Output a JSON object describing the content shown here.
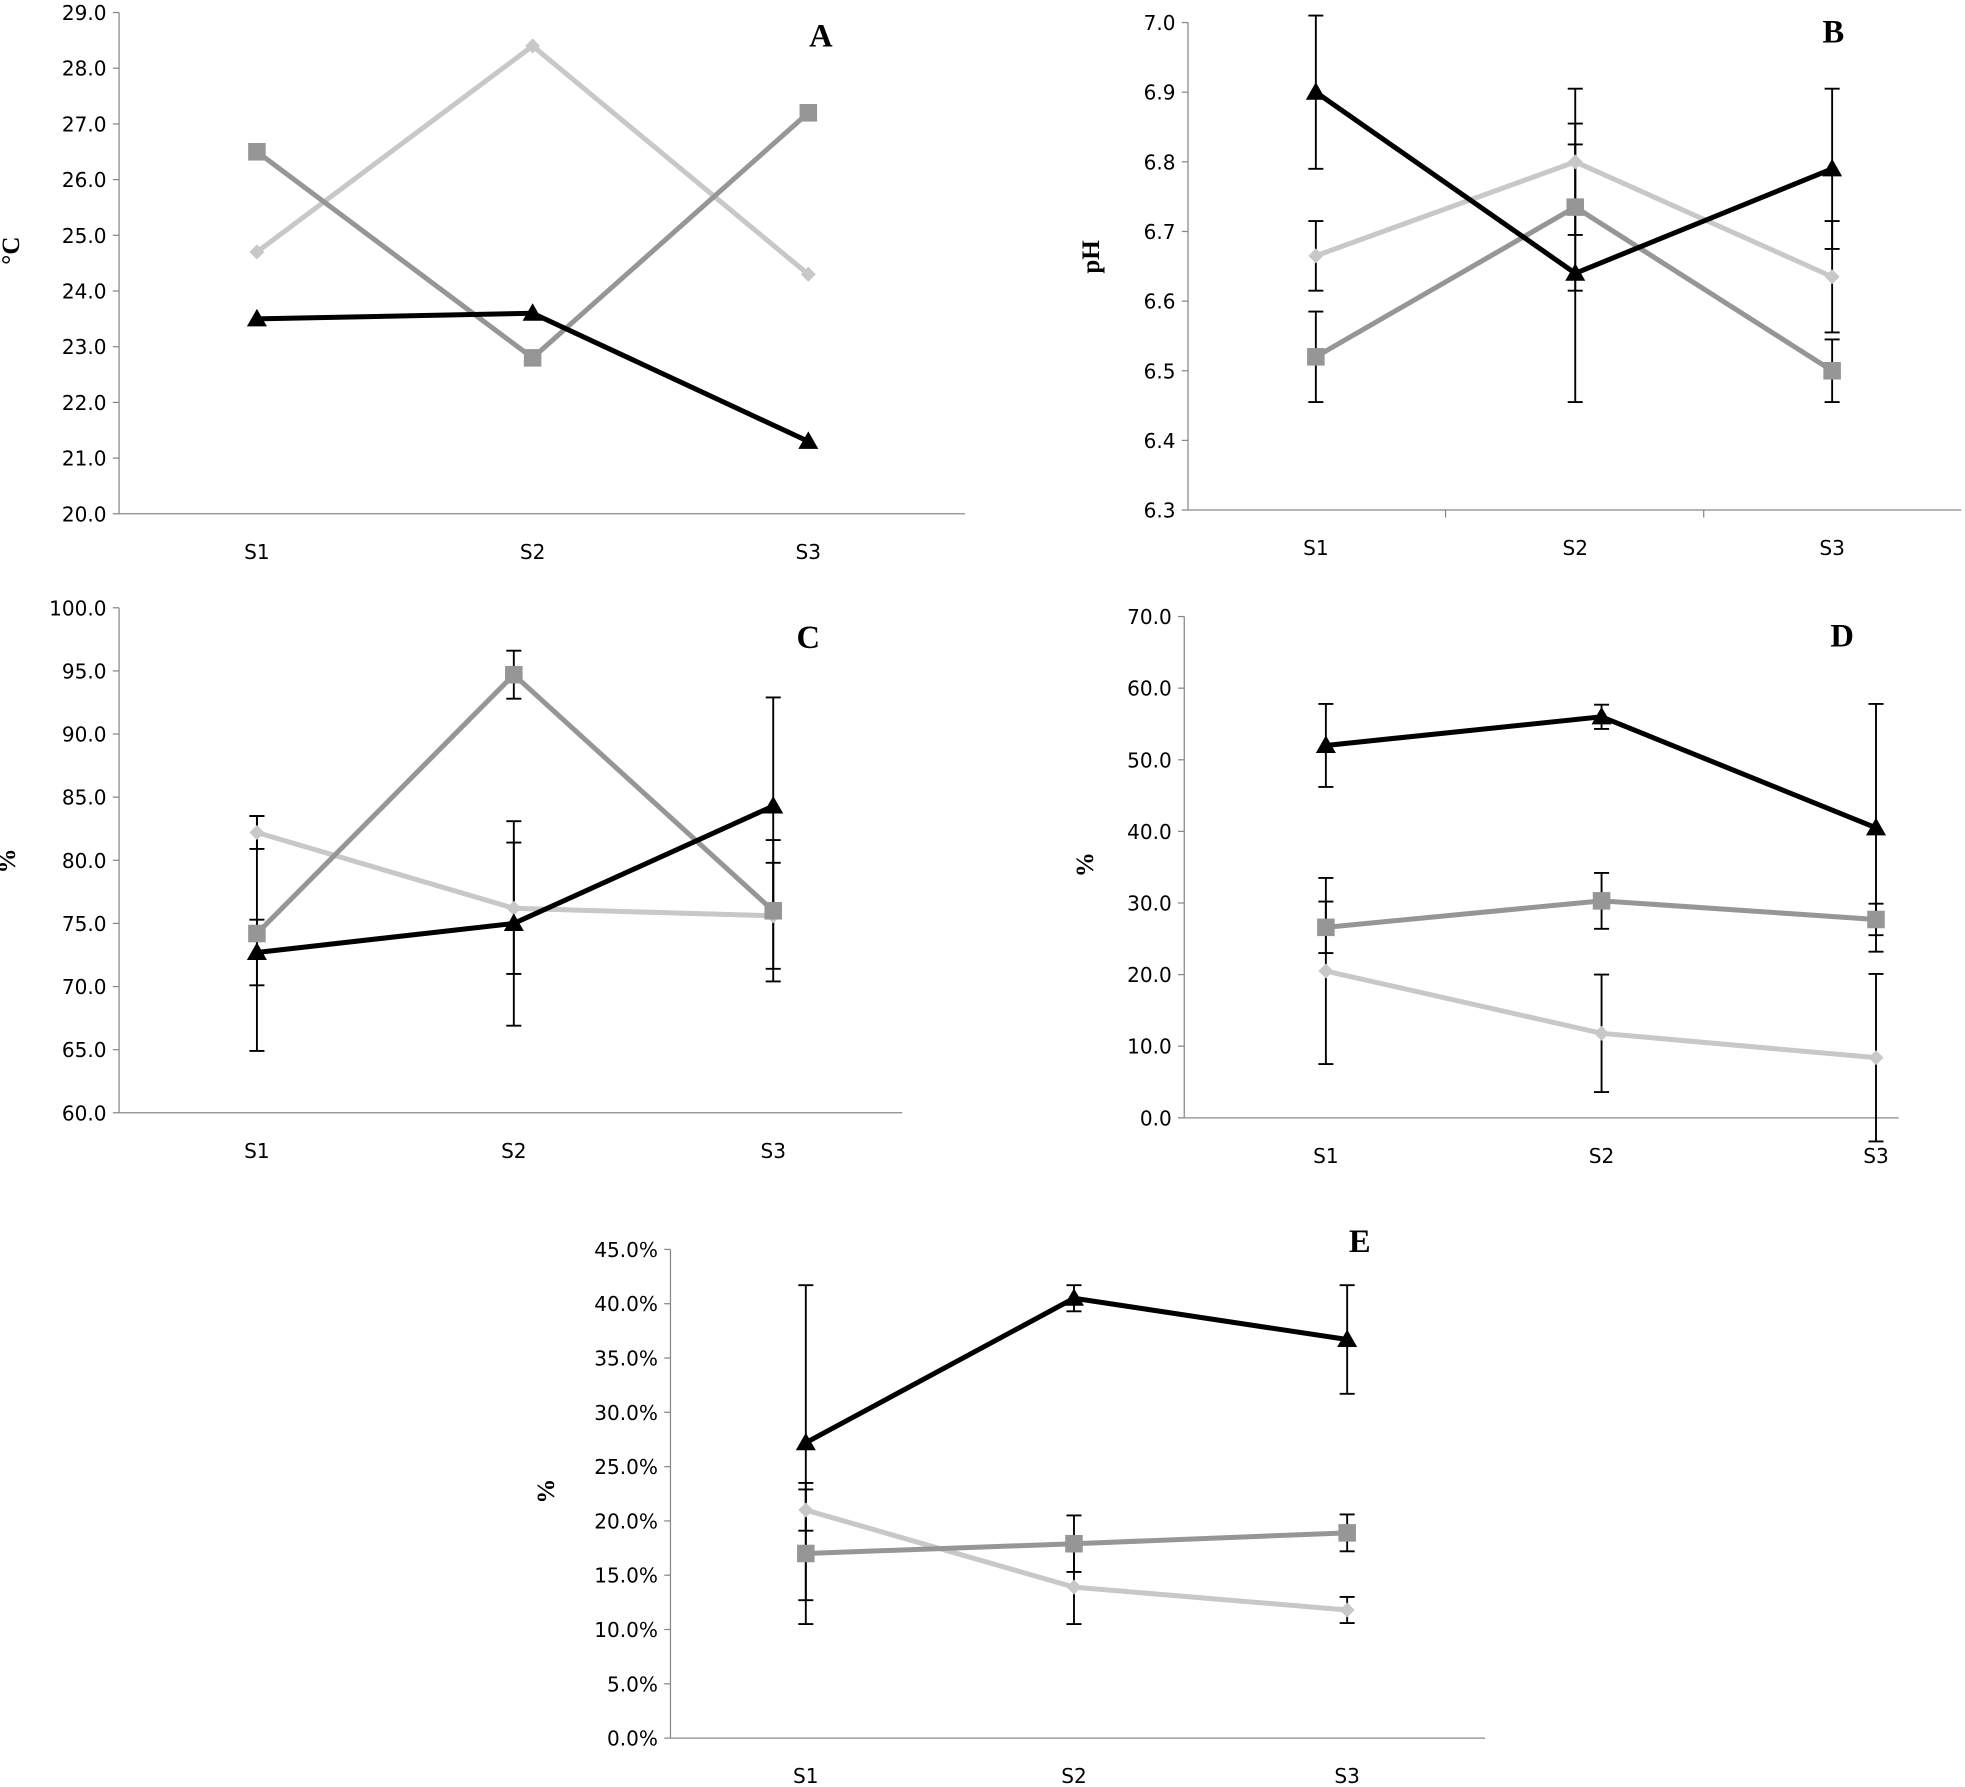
{
  "chart_data": [
    {
      "type": "line",
      "title": "A",
      "y_label": "°C",
      "categories": [
        "S1",
        "S2",
        "S3"
      ],
      "ylim": [
        20,
        29
      ],
      "yticks": [
        {
          "value": 20,
          "label": "20.0"
        },
        {
          "value": 21,
          "label": "21.0"
        },
        {
          "value": 22,
          "label": "22.0"
        },
        {
          "value": 23,
          "label": "23.0"
        },
        {
          "value": 24,
          "label": "24.0"
        },
        {
          "value": 25,
          "label": "25.0"
        },
        {
          "value": 26,
          "label": "26.0"
        },
        {
          "value": 27,
          "label": "27.0"
        },
        {
          "value": 28,
          "label": "28.0"
        },
        {
          "value": 29,
          "label": "29.0"
        }
      ],
      "series": [
        {
          "color": "#c8c8c8",
          "marker": "diamond",
          "values": [
            24.7,
            28.4,
            24.3
          ]
        },
        {
          "color": "#969696",
          "marker": "square",
          "values": [
            26.5,
            22.8,
            27.2
          ]
        },
        {
          "color": "#000000",
          "marker": "triangle",
          "values": [
            23.5,
            23.6,
            21.3
          ]
        }
      ]
    },
    {
      "type": "line",
      "title": "B",
      "y_label": "pH",
      "categories": [
        "S1",
        "S2",
        "S3"
      ],
      "ylim": [
        6.3,
        7.0
      ],
      "yticks": [
        6.3,
        6.4,
        6.5,
        6.6,
        6.7,
        6.8,
        6.9,
        {
          "value": 7.0,
          "label": "7.0"
        }
      ],
      "series": [
        {
          "color": "#c8c8c8",
          "marker": "diamond",
          "values": [
            6.665,
            6.8,
            6.635
          ],
          "errors": [
            0.05,
            0.105,
            0.08
          ]
        },
        {
          "color": "#969696",
          "marker": "square",
          "values": [
            6.52,
            6.735,
            6.5
          ],
          "errors": [
            0.065,
            0.12,
            0.045
          ]
        },
        {
          "color": "#000000",
          "marker": "triangle",
          "values": [
            6.9,
            6.64,
            6.79
          ],
          "errors": [
            0.11,
            0.185,
            0.115
          ]
        }
      ]
    },
    {
      "type": "line",
      "title": "C",
      "y_label": "%",
      "categories": [
        "S1",
        "S2",
        "S3"
      ],
      "ylim": [
        60,
        100
      ],
      "yticks": [
        {
          "value": 60,
          "label": "60.0"
        },
        {
          "value": 65,
          "label": "65.0"
        },
        {
          "value": 70,
          "label": "70.0"
        },
        {
          "value": 75,
          "label": "75.0"
        },
        {
          "value": 80,
          "label": "80.0"
        },
        {
          "value": 85,
          "label": "85.0"
        },
        {
          "value": 90,
          "label": "90.0"
        },
        {
          "value": 95,
          "label": "95.0"
        },
        {
          "value": 100,
          "label": "100.0"
        }
      ],
      "series": [
        {
          "color": "#c8c8c8",
          "marker": "diamond",
          "values": [
            82.2,
            76.2,
            75.6
          ],
          "errors": [
            1.3,
            5.2,
            4.2
          ]
        },
        {
          "color": "#969696",
          "marker": "square",
          "values": [
            74.2,
            94.7,
            76.0
          ],
          "errors": [
            9.3,
            1.9,
            5.6
          ]
        },
        {
          "color": "#000000",
          "marker": "triangle",
          "values": [
            72.7,
            75.0,
            84.3
          ],
          "errors": [
            2.6,
            8.1,
            8.6
          ]
        }
      ]
    },
    {
      "type": "line",
      "title": "D",
      "y_label": "%",
      "categories": [
        "S1",
        "S2",
        "S3"
      ],
      "ylim": [
        0,
        70
      ],
      "yticks": [
        {
          "value": 0,
          "label": "0.0"
        },
        {
          "value": 10,
          "label": "10.0"
        },
        {
          "value": 20,
          "label": "20.0"
        },
        {
          "value": 30,
          "label": "30.0"
        },
        {
          "value": 40,
          "label": "40.0"
        },
        {
          "value": 50,
          "label": "50.0"
        },
        {
          "value": 60,
          "label": "60.0"
        },
        {
          "value": 70,
          "label": "70.0"
        }
      ],
      "series": [
        {
          "color": "#c8c8c8",
          "marker": "diamond",
          "values": [
            20.5,
            11.8,
            8.4
          ],
          "errors": [
            13.0,
            8.2,
            11.7
          ]
        },
        {
          "color": "#969696",
          "marker": "square",
          "values": [
            26.6,
            30.3,
            27.7
          ],
          "errors": [
            3.6,
            3.9,
            2.2
          ]
        },
        {
          "color": "#000000",
          "marker": "triangle",
          "values": [
            52.0,
            56.0,
            40.5
          ],
          "errors": [
            5.8,
            1.7,
            17.3
          ]
        }
      ]
    },
    {
      "type": "line",
      "title": "E",
      "y_label": "%",
      "categories": [
        "S1",
        "S2",
        "S3"
      ],
      "ylim": [
        0,
        45
      ],
      "yticks": [
        {
          "value": 0,
          "label": "0.0%"
        },
        {
          "value": 5,
          "label": "5.0%"
        },
        {
          "value": 10,
          "label": "10.0%"
        },
        {
          "value": 15,
          "label": "15.0%"
        },
        {
          "value": 20,
          "label": "20.0%"
        },
        {
          "value": 25,
          "label": "25.0%"
        },
        {
          "value": 30,
          "label": "30.0%"
        },
        {
          "value": 35,
          "label": "35.0%"
        },
        {
          "value": 40,
          "label": "40.0%"
        },
        {
          "value": 45,
          "label": "45.0%"
        }
      ],
      "series": [
        {
          "color": "#c8c8c8",
          "marker": "diamond",
          "values": [
            21.0,
            13.9,
            11.8
          ],
          "errors": [
            1.9,
            3.4,
            1.2
          ]
        },
        {
          "color": "#969696",
          "marker": "square",
          "values": [
            17.0,
            17.9,
            18.9
          ],
          "errors": [
            6.5,
            2.6,
            1.7
          ]
        },
        {
          "color": "#000000",
          "marker": "triangle",
          "values": [
            27.2,
            40.5,
            36.7
          ],
          "errors": [
            14.5,
            1.2,
            5.0
          ]
        }
      ]
    }
  ]
}
